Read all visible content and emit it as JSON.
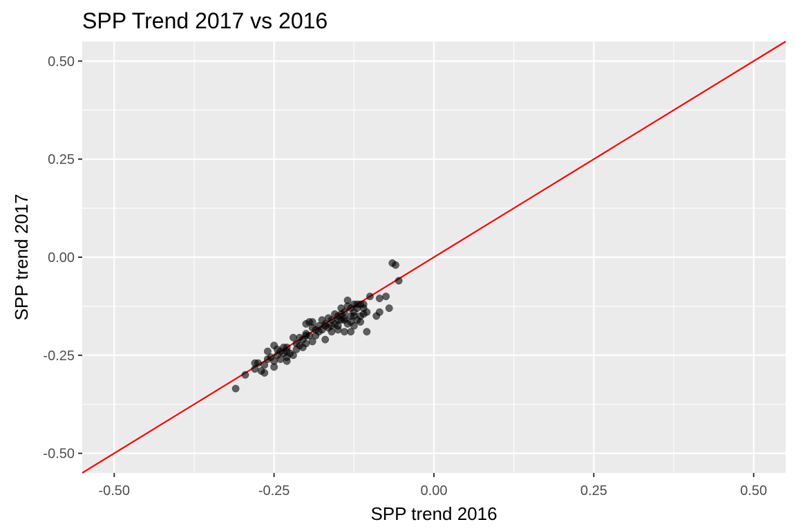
{
  "chart_data": {
    "type": "scatter",
    "title": "SPP Trend 2017 vs 2016",
    "xlabel": "SPP trend 2016",
    "ylabel": "SPP trend 2017",
    "xlim": [
      -0.55,
      0.55
    ],
    "ylim": [
      -0.55,
      0.55
    ],
    "x_ticks": [
      "-0.50",
      "-0.25",
      "0.00",
      "0.25",
      "0.50"
    ],
    "y_ticks": [
      "-0.50",
      "-0.25",
      "0.00",
      "0.25",
      "0.50"
    ],
    "grid": true,
    "background": "#ebebeb",
    "point_color": "#000000",
    "point_alpha": 0.6,
    "reference_line": {
      "slope": 1,
      "intercept": 0,
      "color": "#ff0000"
    },
    "points": [
      [
        -0.31,
        -0.335
      ],
      [
        -0.295,
        -0.3
      ],
      [
        -0.28,
        -0.285
      ],
      [
        -0.27,
        -0.29
      ],
      [
        -0.265,
        -0.295
      ],
      [
        -0.275,
        -0.27
      ],
      [
        -0.265,
        -0.275
      ],
      [
        -0.26,
        -0.26
      ],
      [
        -0.26,
        -0.24
      ],
      [
        -0.25,
        -0.265
      ],
      [
        -0.25,
        -0.28
      ],
      [
        -0.25,
        -0.225
      ],
      [
        -0.245,
        -0.25
      ],
      [
        -0.24,
        -0.24
      ],
      [
        -0.24,
        -0.26
      ],
      [
        -0.235,
        -0.23
      ],
      [
        -0.23,
        -0.255
      ],
      [
        -0.23,
        -0.265
      ],
      [
        -0.23,
        -0.23
      ],
      [
        -0.225,
        -0.245
      ],
      [
        -0.22,
        -0.205
      ],
      [
        -0.22,
        -0.25
      ],
      [
        -0.215,
        -0.235
      ],
      [
        -0.215,
        -0.22
      ],
      [
        -0.21,
        -0.225
      ],
      [
        -0.205,
        -0.21
      ],
      [
        -0.205,
        -0.23
      ],
      [
        -0.2,
        -0.17
      ],
      [
        -0.2,
        -0.195
      ],
      [
        -0.2,
        -0.22
      ],
      [
        -0.195,
        -0.165
      ],
      [
        -0.195,
        -0.2
      ],
      [
        -0.19,
        -0.18
      ],
      [
        -0.19,
        -0.215
      ],
      [
        -0.185,
        -0.2
      ],
      [
        -0.18,
        -0.175
      ],
      [
        -0.18,
        -0.19
      ],
      [
        -0.175,
        -0.16
      ],
      [
        -0.175,
        -0.185
      ],
      [
        -0.17,
        -0.21
      ],
      [
        -0.17,
        -0.17
      ],
      [
        -0.165,
        -0.18
      ],
      [
        -0.165,
        -0.155
      ],
      [
        -0.16,
        -0.16
      ],
      [
        -0.16,
        -0.19
      ],
      [
        -0.155,
        -0.17
      ],
      [
        -0.155,
        -0.145
      ],
      [
        -0.15,
        -0.15
      ],
      [
        -0.15,
        -0.175
      ],
      [
        -0.15,
        -0.185
      ],
      [
        -0.145,
        -0.13
      ],
      [
        -0.145,
        -0.16
      ],
      [
        -0.14,
        -0.19
      ],
      [
        -0.14,
        -0.14
      ],
      [
        -0.14,
        -0.16
      ],
      [
        -0.135,
        -0.11
      ],
      [
        -0.135,
        -0.125
      ],
      [
        -0.135,
        -0.17
      ],
      [
        -0.13,
        -0.15
      ],
      [
        -0.13,
        -0.19
      ],
      [
        -0.13,
        -0.165
      ],
      [
        -0.125,
        -0.12
      ],
      [
        -0.125,
        -0.14
      ],
      [
        -0.125,
        -0.175
      ],
      [
        -0.12,
        -0.13
      ],
      [
        -0.12,
        -0.16
      ],
      [
        -0.115,
        -0.12
      ],
      [
        -0.115,
        -0.15
      ],
      [
        -0.11,
        -0.13
      ],
      [
        -0.11,
        -0.145
      ],
      [
        -0.105,
        -0.19
      ],
      [
        -0.105,
        -0.14
      ],
      [
        -0.1,
        -0.1
      ],
      [
        -0.09,
        -0.15
      ],
      [
        -0.085,
        -0.105
      ],
      [
        -0.085,
        -0.14
      ],
      [
        -0.075,
        -0.1
      ],
      [
        -0.07,
        -0.13
      ],
      [
        -0.065,
        -0.015
      ],
      [
        -0.06,
        -0.02
      ],
      [
        -0.055,
        -0.06
      ],
      [
        -0.28,
        -0.27
      ],
      [
        -0.255,
        -0.255
      ],
      [
        -0.245,
        -0.235
      ],
      [
        -0.235,
        -0.245
      ],
      [
        -0.21,
        -0.205
      ],
      [
        -0.19,
        -0.165
      ],
      [
        -0.185,
        -0.185
      ],
      [
        -0.16,
        -0.175
      ],
      [
        -0.145,
        -0.145
      ],
      [
        -0.13,
        -0.13
      ],
      [
        -0.12,
        -0.12
      ],
      [
        -0.115,
        -0.165
      ],
      [
        -0.11,
        -0.12
      ],
      [
        -0.15,
        -0.16
      ],
      [
        -0.14,
        -0.155
      ],
      [
        -0.125,
        -0.15
      ],
      [
        -0.17,
        -0.175
      ],
      [
        -0.2,
        -0.2
      ],
      [
        -0.23,
        -0.24
      ]
    ]
  }
}
